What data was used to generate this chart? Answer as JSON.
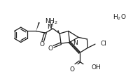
{
  "bg_color": "#ffffff",
  "line_color": "#1a1a1a",
  "lw": 0.9,
  "figsize": [
    2.01,
    1.03
  ],
  "dpi": 100,
  "xlim": [
    0,
    201
  ],
  "ylim": [
    0,
    103
  ]
}
